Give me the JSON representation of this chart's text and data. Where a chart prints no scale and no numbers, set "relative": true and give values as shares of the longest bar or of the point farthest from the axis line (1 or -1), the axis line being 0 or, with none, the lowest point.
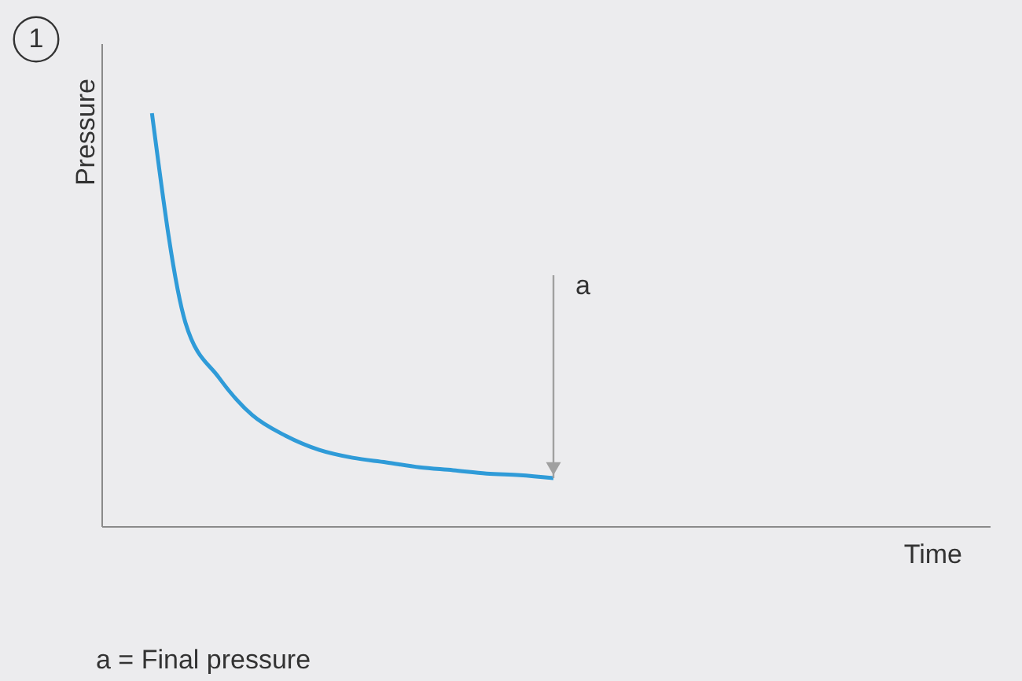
{
  "chart_data": {
    "type": "line",
    "relative": true,
    "ylabel": "Pressure",
    "xlabel": "Time",
    "categories": [
      null,
      null,
      null,
      null,
      null,
      null,
      null,
      null,
      null,
      null,
      null,
      null,
      null,
      null,
      null,
      null,
      null,
      null,
      null,
      null,
      null,
      null,
      null,
      null,
      null
    ],
    "series": [
      {
        "color": "#2f9bd8",
        "values": [
          1.0,
          0.494,
          0.361,
          0.27,
          0.22,
          0.186,
          0.167,
          0.156,
          0.144,
          0.137,
          0.129,
          0.125,
          0.118,
          null,
          null,
          null,
          null,
          null,
          null,
          null,
          null,
          null,
          null,
          null,
          null
        ]
      }
    ],
    "annotations": [
      "1",
      "a",
      "a = Final pressure"
    ],
    "grid": false,
    "tick_labels": false,
    "marker": "none",
    "line_style": "solid"
  }
}
